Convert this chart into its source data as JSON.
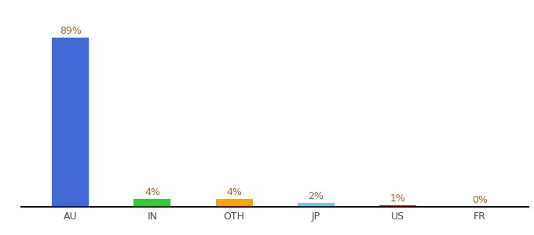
{
  "categories": [
    "AU",
    "IN",
    "OTH",
    "JP",
    "US",
    "FR"
  ],
  "values": [
    89,
    4,
    4,
    2,
    1,
    0
  ],
  "labels": [
    "89%",
    "4%",
    "4%",
    "2%",
    "1%",
    "0%"
  ],
  "bar_colors": [
    "#4169D4",
    "#33CC33",
    "#FFA500",
    "#66CCEE",
    "#994422",
    "#AAAAAA"
  ],
  "ylim": [
    0,
    100
  ],
  "background_color": "#ffffff",
  "label_color": "#996633",
  "label_fontsize": 9,
  "tick_fontsize": 9,
  "bar_width": 0.45
}
